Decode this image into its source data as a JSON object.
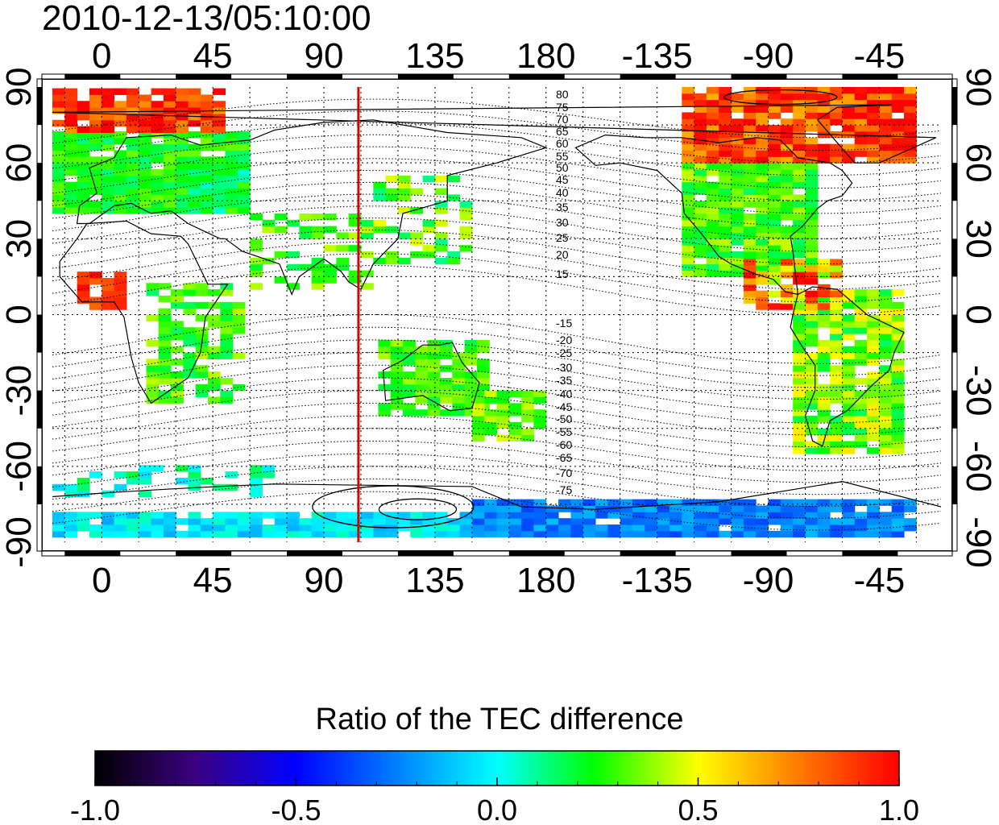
{
  "title": "2010-12-13/05:10:00",
  "map": {
    "x_axis_top_labels": [
      "0",
      "45",
      "90",
      "135",
      "180",
      "-135",
      "-90",
      "-45"
    ],
    "x_axis_bottom_labels": [
      "0",
      "45",
      "90",
      "135",
      "180",
      "-135",
      "-90",
      "-45"
    ],
    "lat_labels": [
      "90",
      "60",
      "30",
      "0",
      "-30",
      "-60",
      "-90"
    ],
    "lon_range": [
      -20,
      340
    ],
    "lat_range": [
      -90,
      90
    ],
    "red_meridian_lon": 104,
    "contour_labels_north": [
      "80",
      "75",
      "70",
      "65",
      "60",
      "55",
      "50",
      "45",
      "40",
      "35",
      "30",
      "25",
      "20",
      "15"
    ],
    "contour_labels_south": [
      "-15",
      "-20",
      "-25",
      "-30",
      "-35",
      "-40",
      "-45",
      "-50",
      "-55",
      "-60",
      "-65",
      "-70",
      "-75"
    ],
    "grid": "dotted",
    "colors": {
      "meridian": "#dd0000",
      "contour": "#000000"
    }
  },
  "colorbar": {
    "title": "Ratio of the TEC difference",
    "tick_labels": [
      "-1.0",
      "-0.5",
      "0.0",
      "0.5",
      "1.0"
    ],
    "range": [
      -1.0,
      1.0
    ],
    "colormap": [
      "#000000",
      "#3a0080",
      "#0000ff",
      "#00ffff",
      "#00ff00",
      "#ffff00",
      "#ff8000",
      "#ff0000"
    ]
  }
}
